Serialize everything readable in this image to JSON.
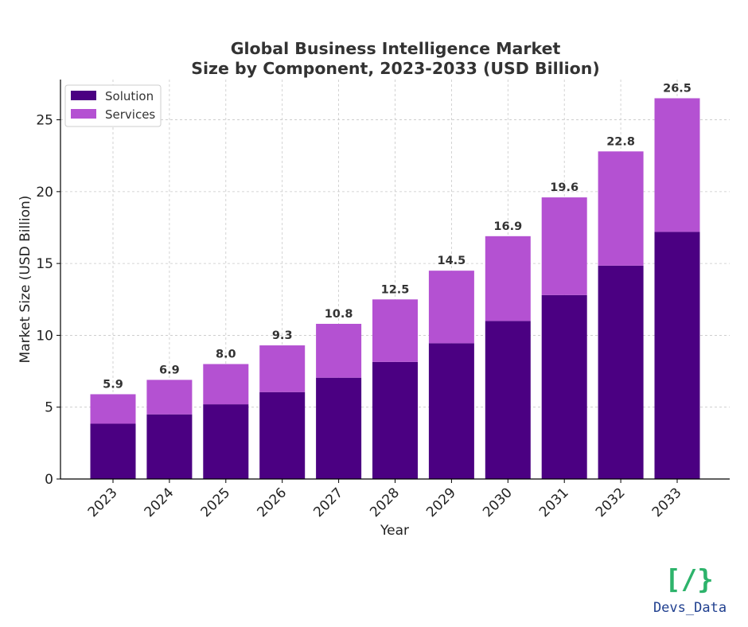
{
  "colors": {
    "solution": "#4b0082",
    "services": "#b451d2",
    "grid": "#c8c8c8",
    "logo_bracket": "#2db36b",
    "logo_text": "#1f3f8f"
  },
  "logo": {
    "text": "Devs_Data",
    "icon": "code-brackets-icon"
  },
  "chart_data": {
    "type": "bar",
    "stacked": true,
    "title": [
      "Global Business Intelligence Market",
      "Size by Component, 2023-2033 (USD Billion)"
    ],
    "xlabel": "Year",
    "ylabel": "Market Size (USD Billion)",
    "categories": [
      "2023",
      "2024",
      "2025",
      "2026",
      "2027",
      "2028",
      "2029",
      "2030",
      "2031",
      "2032",
      "2033"
    ],
    "series": [
      {
        "name": "Solution",
        "values": [
          3.85,
          4.5,
          5.2,
          6.05,
          7.05,
          8.15,
          9.45,
          11.0,
          12.8,
          14.85,
          17.2
        ]
      },
      {
        "name": "Services",
        "values": [
          2.05,
          2.4,
          2.8,
          3.25,
          3.75,
          4.35,
          5.05,
          5.9,
          6.8,
          7.95,
          9.3
        ]
      }
    ],
    "totals_labels": [
      "5.9",
      "6.9",
      "8.0",
      "9.3",
      "10.8",
      "12.5",
      "14.5",
      "16.9",
      "19.6",
      "22.8",
      "26.5"
    ],
    "ylim": [
      0,
      27.8
    ],
    "yticks": [
      0,
      5,
      10,
      15,
      20,
      25
    ],
    "grid": true,
    "legend_position": "top-left"
  }
}
